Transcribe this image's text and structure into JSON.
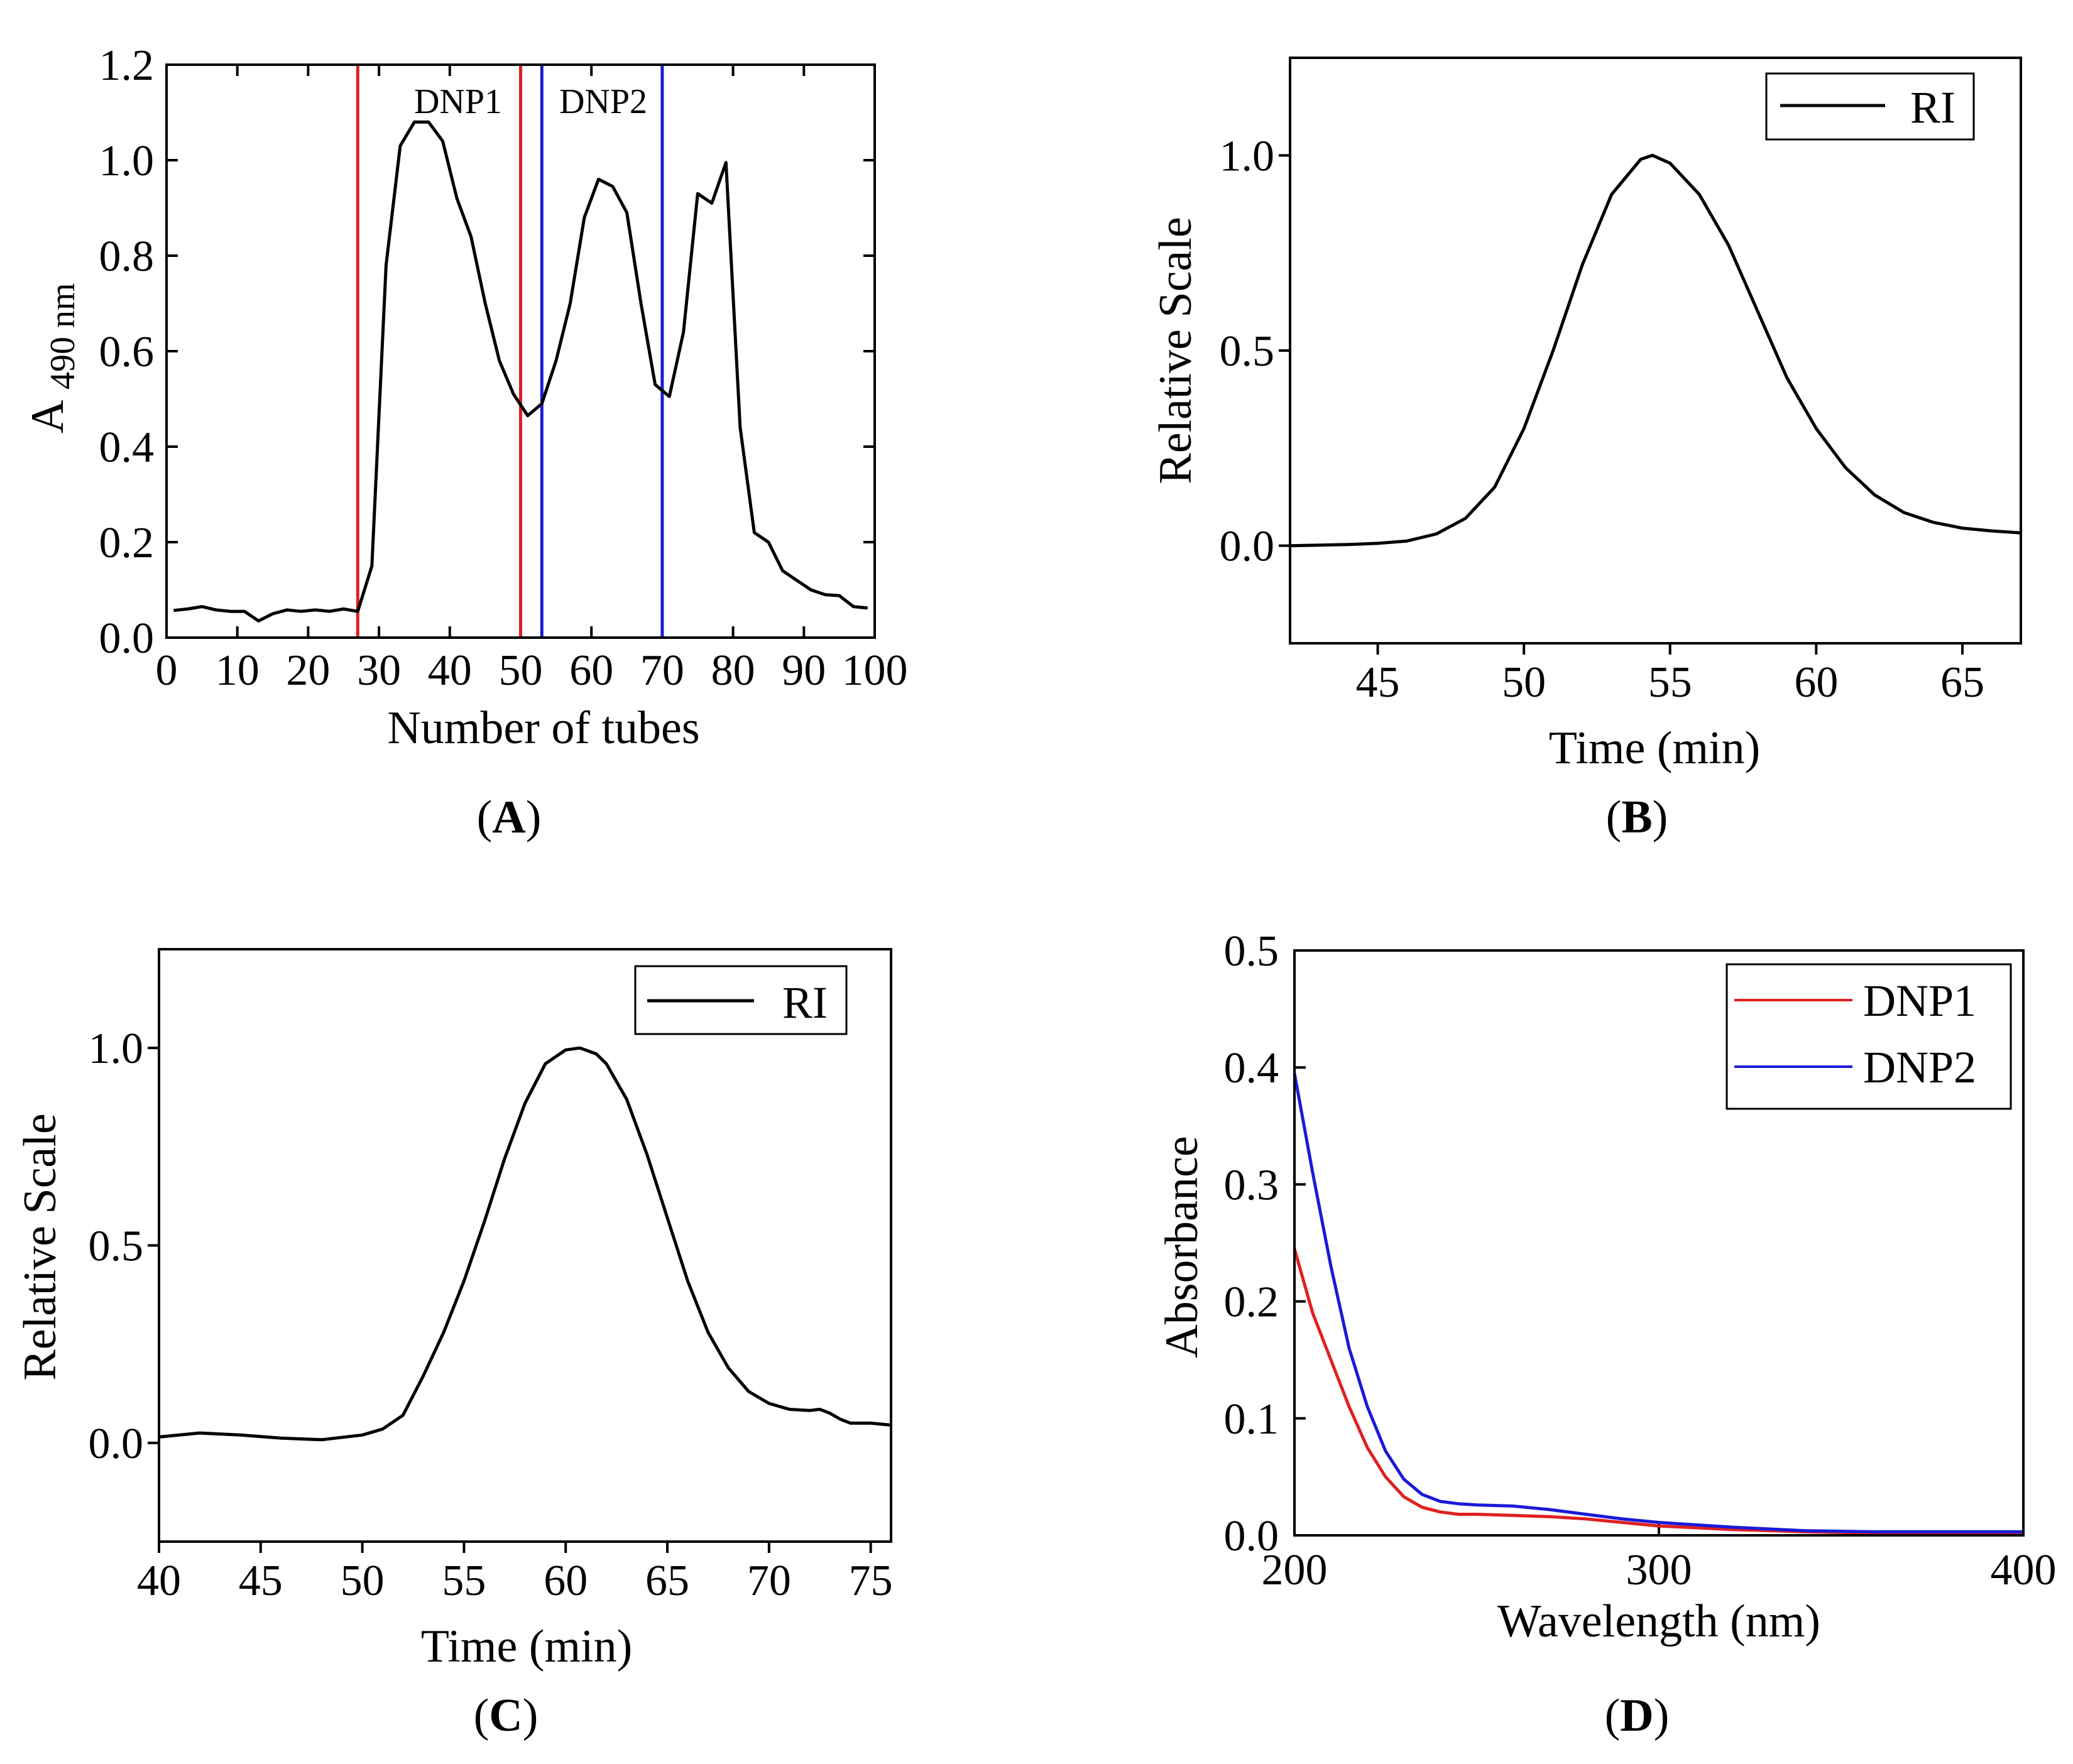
{
  "chart_data": [
    {
      "panel": "A",
      "type": "line",
      "caption": "A",
      "xlabel": "Number of tubes",
      "ylabel": "A",
      "ylabel_sub": "490 nm",
      "xlim": [
        0,
        100
      ],
      "ylim": [
        0,
        1.2
      ],
      "xticks": [
        0,
        10,
        20,
        30,
        40,
        50,
        60,
        70,
        80,
        90,
        100
      ],
      "yticks": [
        0.0,
        0.2,
        0.4,
        0.6,
        0.8,
        1.0,
        1.2
      ],
      "xtick_labels": [
        "0",
        "10",
        "20",
        "30",
        "40",
        "50",
        "60",
        "70",
        "80",
        "90",
        "100"
      ],
      "ytick_labels": [
        "0.0",
        "0.2",
        "0.4",
        "0.6",
        "0.8",
        "1.0",
        "1.2"
      ],
      "series": [
        {
          "name": "A490",
          "color": "#000000",
          "x": [
            1,
            3,
            5,
            7,
            9,
            11,
            13,
            15,
            17,
            19,
            21,
            23,
            25,
            27,
            29,
            31,
            33,
            35,
            37,
            39,
            41,
            43,
            45,
            47,
            49,
            51,
            53,
            55,
            57,
            59,
            61,
            63,
            65,
            67,
            69,
            71,
            73,
            75,
            77,
            79,
            81,
            83,
            85,
            87,
            89,
            91,
            93,
            95,
            97,
            99
          ],
          "y": [
            0.057,
            0.06,
            0.065,
            0.058,
            0.055,
            0.055,
            0.035,
            0.05,
            0.058,
            0.055,
            0.058,
            0.055,
            0.06,
            0.055,
            0.15,
            0.78,
            1.03,
            1.08,
            1.08,
            1.04,
            0.92,
            0.84,
            0.7,
            0.58,
            0.51,
            0.465,
            0.49,
            0.58,
            0.7,
            0.88,
            0.96,
            0.945,
            0.89,
            0.7,
            0.53,
            0.505,
            0.64,
            0.93,
            0.91,
            0.995,
            0.44,
            0.22,
            0.2,
            0.14,
            0.12,
            0.1,
            0.09,
            0.088,
            0.065,
            0.062
          ]
        }
      ],
      "vlines": [
        {
          "x": 27,
          "color": "#e02020"
        },
        {
          "x": 50,
          "color": "#e02020"
        },
        {
          "x": 53,
          "color": "#1a1ad8"
        },
        {
          "x": 70,
          "color": "#1a1ad8"
        }
      ],
      "annotations": [
        {
          "text": "DNP1",
          "x": 39,
          "y": 1.1
        },
        {
          "text": "DNP2",
          "x": 61,
          "y": 1.1
        }
      ]
    },
    {
      "panel": "B",
      "type": "line",
      "caption": "B",
      "xlabel": "Time (min)",
      "ylabel": "Relative Scale",
      "xlim": [
        42,
        67
      ],
      "ylim": [
        -0.25,
        1.25
      ],
      "xticks": [
        45,
        50,
        55,
        60,
        65
      ],
      "yticks": [
        0.0,
        0.5,
        1.0
      ],
      "xtick_labels": [
        "45",
        "50",
        "55",
        "60",
        "65"
      ],
      "ytick_labels": [
        "0.0",
        "0.5",
        "1.0"
      ],
      "legend": [
        {
          "label": "RI",
          "color": "#000000"
        }
      ],
      "series": [
        {
          "name": "RI",
          "color": "#000000",
          "x": [
            42,
            44,
            45,
            46,
            47,
            48,
            49,
            50,
            51,
            52,
            53,
            54,
            54.4,
            55,
            56,
            57,
            58,
            59,
            60,
            61,
            62,
            63,
            64,
            65,
            66,
            67
          ],
          "y": [
            0.0,
            0.003,
            0.006,
            0.012,
            0.03,
            0.07,
            0.15,
            0.3,
            0.5,
            0.72,
            0.9,
            0.99,
            1.0,
            0.98,
            0.9,
            0.77,
            0.6,
            0.43,
            0.3,
            0.2,
            0.13,
            0.085,
            0.06,
            0.045,
            0.038,
            0.033
          ]
        }
      ]
    },
    {
      "panel": "C",
      "type": "line",
      "caption": "C",
      "xlabel": "Time (min)",
      "ylabel": "Relative Scale",
      "xlim": [
        40,
        76
      ],
      "ylim": [
        -0.25,
        1.25
      ],
      "xticks": [
        40,
        45,
        50,
        55,
        60,
        65,
        70,
        75
      ],
      "yticks": [
        0.0,
        0.5,
        1.0
      ],
      "xtick_labels": [
        "40",
        "45",
        "50",
        "55",
        "60",
        "65",
        "70",
        "75"
      ],
      "ytick_labels": [
        "0.0",
        "0.5",
        "1.0"
      ],
      "legend": [
        {
          "label": "RI",
          "color": "#000000"
        }
      ],
      "series": [
        {
          "name": "RI",
          "color": "#000000",
          "x": [
            40,
            42,
            44,
            46,
            48,
            50,
            51,
            52,
            53,
            54,
            55,
            56,
            57,
            58,
            59,
            60,
            60.7,
            61.5,
            62,
            63,
            64,
            65,
            66,
            67,
            68,
            69,
            70,
            71,
            72,
            72.5,
            73,
            73.5,
            74,
            75,
            76
          ],
          "y": [
            0.015,
            0.025,
            0.02,
            0.012,
            0.008,
            0.02,
            0.035,
            0.07,
            0.17,
            0.28,
            0.41,
            0.56,
            0.72,
            0.86,
            0.96,
            0.995,
            1.0,
            0.985,
            0.96,
            0.87,
            0.73,
            0.57,
            0.41,
            0.28,
            0.19,
            0.13,
            0.1,
            0.085,
            0.082,
            0.085,
            0.075,
            0.06,
            0.05,
            0.05,
            0.045
          ]
        }
      ]
    },
    {
      "panel": "D",
      "type": "line",
      "caption": "D",
      "xlabel": "Wavelength (nm)",
      "ylabel": "Absorbance",
      "xlim": [
        200,
        400
      ],
      "ylim": [
        0,
        0.5
      ],
      "xticks": [
        200,
        300,
        400
      ],
      "yticks": [
        0.0,
        0.1,
        0.2,
        0.3,
        0.4,
        0.5
      ],
      "xtick_labels": [
        "200",
        "300",
        "400"
      ],
      "ytick_labels": [
        "0.0",
        "0.1",
        "0.2",
        "0.3",
        "0.4",
        "0.5"
      ],
      "legend": [
        {
          "label": "DNP1",
          "color": "#e02020"
        },
        {
          "label": "DNP2",
          "color": "#1a1ad8"
        }
      ],
      "series": [
        {
          "name": "DNP1",
          "color": "#e02020",
          "x": [
            200,
            205,
            210,
            215,
            220,
            225,
            230,
            235,
            240,
            245,
            250,
            260,
            270,
            280,
            290,
            300,
            320,
            340,
            360,
            380,
            400
          ],
          "y": [
            0.245,
            0.19,
            0.15,
            0.11,
            0.075,
            0.05,
            0.033,
            0.024,
            0.02,
            0.018,
            0.018,
            0.017,
            0.016,
            0.014,
            0.011,
            0.008,
            0.005,
            0.003,
            0.002,
            0.002,
            0.002
          ]
        },
        {
          "name": "DNP2",
          "color": "#1a1ad8",
          "x": [
            200,
            205,
            210,
            215,
            220,
            225,
            230,
            235,
            240,
            245,
            250,
            260,
            270,
            280,
            290,
            300,
            320,
            340,
            360,
            380,
            400
          ],
          "y": [
            0.395,
            0.31,
            0.23,
            0.16,
            0.11,
            0.072,
            0.048,
            0.035,
            0.029,
            0.027,
            0.026,
            0.025,
            0.022,
            0.018,
            0.014,
            0.011,
            0.007,
            0.004,
            0.003,
            0.003,
            0.003
          ]
        }
      ]
    }
  ]
}
